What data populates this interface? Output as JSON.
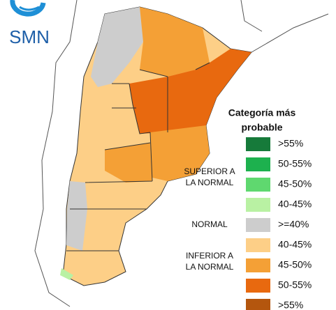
{
  "logo": {
    "text": "SMN"
  },
  "legend": {
    "title": [
      "Categoría más",
      "probable"
    ],
    "groups": [
      {
        "label": [
          "SUPERIOR A",
          "LA NORMAL"
        ],
        "items": [
          {
            "label": ">55%",
            "color": "#167a3a"
          },
          {
            "label": "50-55%",
            "color": "#1db14e"
          },
          {
            "label": "45-50%",
            "color": "#5fd86f"
          },
          {
            "label": "40-45%",
            "color": "#b9f1a3"
          }
        ]
      },
      {
        "label": [
          "NORMAL"
        ],
        "items": [
          {
            "label": ">=40%",
            "color": "#cdcdcd"
          }
        ]
      },
      {
        "label": [
          "INFERIOR A",
          "LA NORMAL"
        ],
        "items": [
          {
            "label": "40-45%",
            "color": "#fdcf87"
          },
          {
            "label": "45-50%",
            "color": "#f4a036"
          },
          {
            "label": "50-55%",
            "color": "#e8690f"
          },
          {
            "label": ">55%",
            "color": "#b4560e"
          }
        ]
      }
    ]
  }
}
